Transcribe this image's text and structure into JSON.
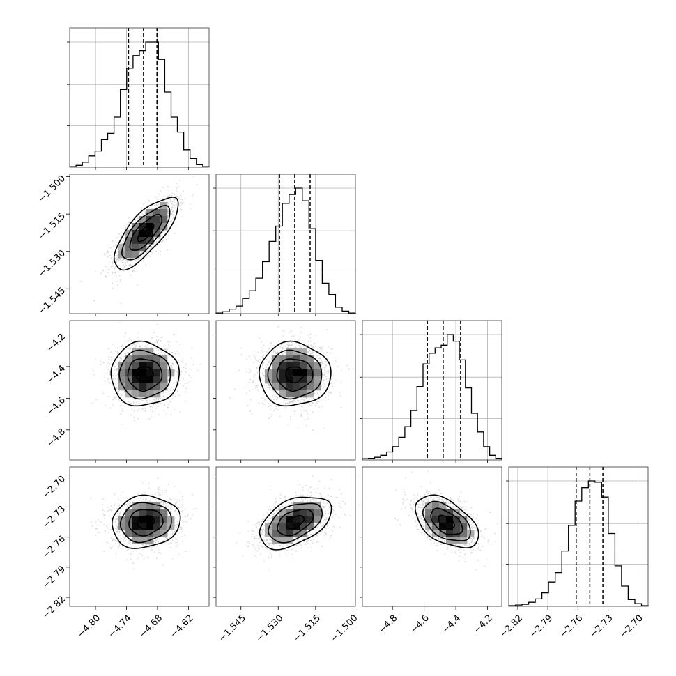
{
  "chart_data": {
    "type": "corner",
    "title": "",
    "grid": true,
    "parameters": [
      {
        "range": [
          -4.85,
          -4.58
        ],
        "ticks": [
          -4.8,
          -4.74,
          -4.68,
          -4.62
        ],
        "tick_labels": [
          "−4.80",
          "−4.74",
          "−4.68",
          "−4.62"
        ],
        "quantiles": [
          -4.736,
          -4.707,
          -4.681
        ],
        "peak": -4.693
      },
      {
        "range": [
          -1.555,
          -1.499
        ],
        "ticks": [
          -1.545,
          -1.53,
          -1.515,
          -1.5
        ],
        "tick_labels": [
          "−1.545",
          "−1.530",
          "−1.515",
          "−1.500"
        ],
        "quantiles": [
          -1.5295,
          -1.5234,
          -1.5172
        ],
        "peak": -1.5225
      },
      {
        "range": [
          -4.99,
          -4.11
        ],
        "ticks": [
          -4.8,
          -4.6,
          -4.4,
          -4.2
        ],
        "tick_labels": [
          "−4.8",
          "−4.6",
          "−4.4",
          "−4.2"
        ],
        "quantiles": [
          -4.58,
          -4.48,
          -4.37
        ],
        "peak": -4.43
      },
      {
        "range": [
          -2.829,
          -2.69
        ],
        "ticks": [
          -2.82,
          -2.79,
          -2.76,
          -2.73,
          -2.7
        ],
        "tick_labels": [
          "−2.82",
          "−2.79",
          "−2.76",
          "−2.73",
          "−2.70"
        ],
        "quantiles": [
          -2.7617,
          -2.7481,
          -2.7351
        ],
        "peak": -2.7475
      }
    ],
    "histograms": [
      [
        0.005,
        0.015,
        0.04,
        0.09,
        0.13,
        0.22,
        0.27,
        0.4,
        0.62,
        0.79,
        0.89,
        0.93,
        1.0,
        1.0,
        0.86,
        0.6,
        0.4,
        0.28,
        0.14,
        0.07,
        0.02,
        0.005
      ],
      [
        0.005,
        0.015,
        0.035,
        0.06,
        0.12,
        0.18,
        0.28,
        0.41,
        0.57,
        0.69,
        0.87,
        0.94,
        0.99,
        0.89,
        0.67,
        0.42,
        0.24,
        0.15,
        0.05,
        0.02,
        0.005
      ],
      [
        0.01,
        0.012,
        0.02,
        0.035,
        0.06,
        0.1,
        0.17,
        0.25,
        0.37,
        0.55,
        0.72,
        0.8,
        0.84,
        0.86,
        0.94,
        0.89,
        0.75,
        0.54,
        0.35,
        0.21,
        0.1,
        0.035,
        0.012
      ],
      [
        0.005,
        0.01,
        0.015,
        0.03,
        0.055,
        0.1,
        0.18,
        0.25,
        0.41,
        0.6,
        0.78,
        0.88,
        0.93,
        0.92,
        0.81,
        0.54,
        0.3,
        0.15,
        0.05,
        0.02,
        0.005
      ]
    ],
    "pairs": [
      {
        "x": 0,
        "y": 1,
        "center": [
          -4.703,
          -1.5225
        ],
        "sd": [
          0.031,
          0.0072
        ],
        "rho": 0.75
      },
      {
        "x": 0,
        "y": 2,
        "center": [
          -4.705,
          -4.45
        ],
        "sd": [
          0.033,
          0.1
        ],
        "rho": 0.0
      },
      {
        "x": 1,
        "y": 2,
        "center": [
          -1.5235,
          -4.45
        ],
        "sd": [
          0.0072,
          0.1
        ],
        "rho": 0.0
      },
      {
        "x": 0,
        "y": 3,
        "center": [
          -4.703,
          -2.745
        ],
        "sd": [
          0.033,
          0.013
        ],
        "rho": 0.1
      },
      {
        "x": 1,
        "y": 3,
        "center": [
          -1.5233,
          -2.745
        ],
        "sd": [
          0.0072,
          0.013
        ],
        "rho": 0.45
      },
      {
        "x": 2,
        "y": 3,
        "center": [
          -4.46,
          -2.745
        ],
        "sd": [
          0.1,
          0.013
        ],
        "rho": -0.5
      }
    ]
  }
}
